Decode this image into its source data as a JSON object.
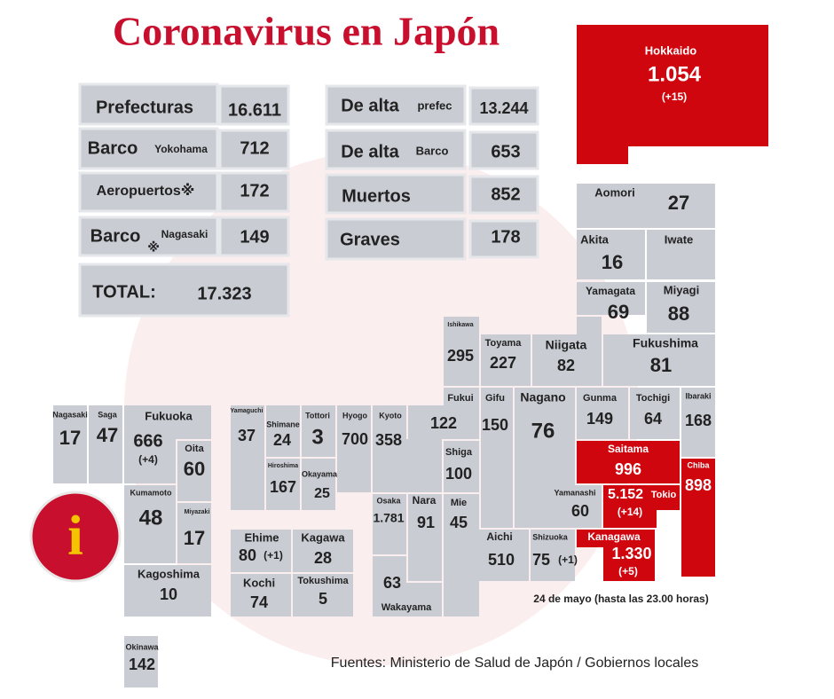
{
  "header": {
    "title": "Coronavirus en Japón"
  },
  "summary": [
    {
      "label": "Prefecturas",
      "value": "16.611"
    },
    {
      "label": "Barco",
      "sublabel": "Yokohama",
      "value": "712"
    },
    {
      "label": "Aeropuertos※",
      "value": "172"
    },
    {
      "label": "Barco",
      "mark": "※",
      "sublabel": "Nagasaki",
      "value": "149"
    },
    {
      "label": "TOTAL:",
      "value": "17.323"
    },
    {
      "label": "De alta",
      "sublabel": "prefec",
      "value": "13.244"
    },
    {
      "label": "De alta",
      "sublabel": "Barco",
      "value": "653"
    },
    {
      "label": "Muertos",
      "value": "852"
    },
    {
      "label": "Graves",
      "value": "178"
    }
  ],
  "prefectures": [
    {
      "name": "Hokkaido",
      "value": "1.054",
      "change": "(+15)"
    },
    {
      "name": "Aomori",
      "value": "27"
    },
    {
      "name": "Akita",
      "value": "16"
    },
    {
      "name": "Iwate"
    },
    {
      "name": "Yamagata",
      "value": "69"
    },
    {
      "name": "Miyagi",
      "value": "88"
    },
    {
      "name": "Ishikawa",
      "value": "295"
    },
    {
      "name": "Toyama",
      "value": "227"
    },
    {
      "name": "Niigata",
      "value": "82"
    },
    {
      "name": "Fukushima",
      "value": "81"
    },
    {
      "name": "Fukui",
      "value": "122"
    },
    {
      "name": "Gifu",
      "value": "150"
    },
    {
      "name": "Nagano",
      "value": "76"
    },
    {
      "name": "Gunma",
      "value": "149"
    },
    {
      "name": "Tochigi",
      "value": "64"
    },
    {
      "name": "Ibaraki",
      "value": "168"
    },
    {
      "name": "Saitama",
      "value": "996"
    },
    {
      "name": "Chiba",
      "value": "898"
    },
    {
      "name": "Yamanashi",
      "value": "60"
    },
    {
      "name": "Tokio",
      "value": "5.152",
      "change": "(+14)"
    },
    {
      "name": "Shizuoka",
      "value": "75",
      "change": "(+1)"
    },
    {
      "name": "Kanagawa",
      "value": "1.330",
      "change": "(+5)"
    },
    {
      "name": "Aichi",
      "value": "510"
    },
    {
      "name": "Kyoto",
      "value": "358"
    },
    {
      "name": "Shiga",
      "value": "100"
    },
    {
      "name": "Osaka",
      "value": "1.781"
    },
    {
      "name": "Nara",
      "value": "91"
    },
    {
      "name": "Mie",
      "value": "45"
    },
    {
      "name": "Wakayama",
      "value": "63"
    },
    {
      "name": "Hyogo",
      "value": "700"
    },
    {
      "name": "Tottori",
      "value": "3"
    },
    {
      "name": "Shimane",
      "value": "24"
    },
    {
      "name": "Yamaguchi",
      "value": "37"
    },
    {
      "name": "Hiroshima",
      "value": "167"
    },
    {
      "name": "Okayama",
      "value": "25"
    },
    {
      "name": "Ehime",
      "value": "80",
      "change": "(+1)"
    },
    {
      "name": "Kagawa",
      "value": "28"
    },
    {
      "name": "Kochi",
      "value": "74"
    },
    {
      "name": "Tokushima",
      "value": "5"
    },
    {
      "name": "Nagasaki",
      "value": "17"
    },
    {
      "name": "Saga",
      "value": "47"
    },
    {
      "name": "Fukuoka",
      "value": "666",
      "change": "(+4)"
    },
    {
      "name": "Oita",
      "value": "60"
    },
    {
      "name": "Kumamoto",
      "value": "48"
    },
    {
      "name": "Miyazaki",
      "value": "17"
    },
    {
      "name": "Kagoshima",
      "value": "10"
    },
    {
      "name": "Okinawa",
      "value": "142"
    }
  ],
  "note": "24 de mayo  (hasta las 23.00 horas)",
  "source": "Fuentes: Ministerio de Salud de Japón / Gobiernos locales"
}
